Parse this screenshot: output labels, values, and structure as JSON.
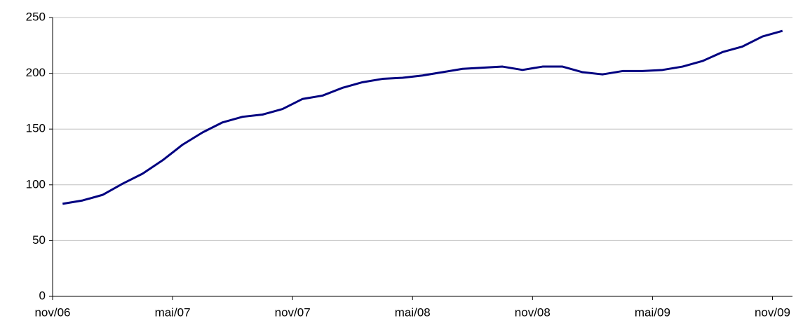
{
  "chart_data": {
    "type": "line",
    "categories": [
      "nov/06",
      null,
      null,
      null,
      null,
      null,
      "mai/07",
      null,
      null,
      null,
      null,
      null,
      "nov/07",
      null,
      null,
      null,
      null,
      null,
      "mai/08",
      null,
      null,
      null,
      null,
      null,
      "nov/08",
      null,
      null,
      null,
      null,
      null,
      "mai/09",
      null,
      null,
      null,
      null,
      null,
      "nov/09"
    ],
    "series": [
      {
        "color": "#000080",
        "values": [
          83,
          86,
          91,
          101,
          110,
          122,
          136,
          147,
          156,
          161,
          163,
          168,
          177,
          180,
          187,
          192,
          195,
          196,
          198,
          201,
          204,
          205,
          206,
          203,
          206,
          206,
          201,
          199,
          202,
          202,
          203,
          206,
          211,
          219,
          224,
          233,
          238
        ]
      }
    ],
    "ylim": [
      0,
      250
    ],
    "yticks": [
      0,
      50,
      100,
      150,
      200,
      250
    ],
    "grid": true
  }
}
